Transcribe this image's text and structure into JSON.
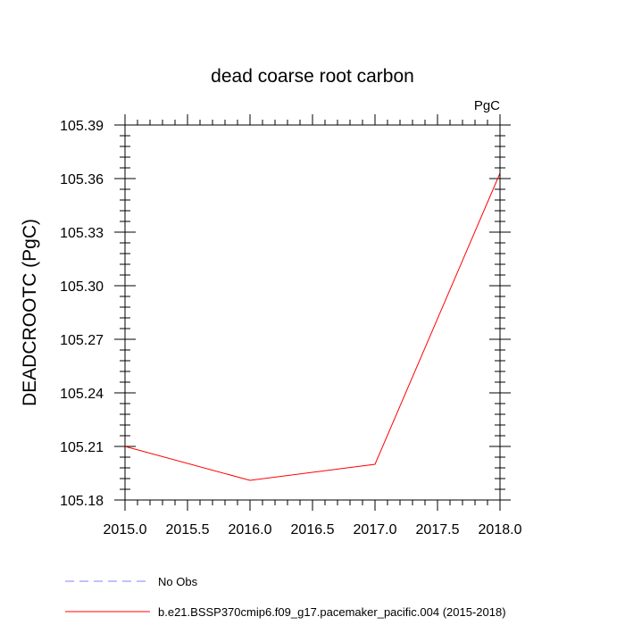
{
  "chart_data": {
    "type": "line",
    "title": "dead coarse root carbon",
    "units_label": "PgC",
    "xlabel": "",
    "ylabel": "DEADCROOTC  (PgC)",
    "xlim": [
      2015.0,
      2018.0
    ],
    "ylim": [
      105.18,
      105.39
    ],
    "x_ticks": [
      "2015.0",
      "2015.5",
      "2016.0",
      "2016.5",
      "2017.0",
      "2017.5",
      "2018.0"
    ],
    "y_ticks": [
      "105.18",
      "105.21",
      "105.24",
      "105.27",
      "105.30",
      "105.33",
      "105.36",
      "105.39"
    ],
    "grid": false,
    "legend_position": "bottom",
    "series": [
      {
        "name": "No Obs",
        "color": "#8080ff",
        "dash": "dashed",
        "x": [],
        "y": []
      },
      {
        "name": "b.e21.BSSP370cmip6.f09_g17.pacemaker_pacific.004 (2015-2018)",
        "color": "#ff0000",
        "dash": "solid",
        "x": [
          2015,
          2016,
          2017,
          2018
        ],
        "y": [
          105.21,
          105.191,
          105.2,
          105.363
        ]
      }
    ]
  }
}
